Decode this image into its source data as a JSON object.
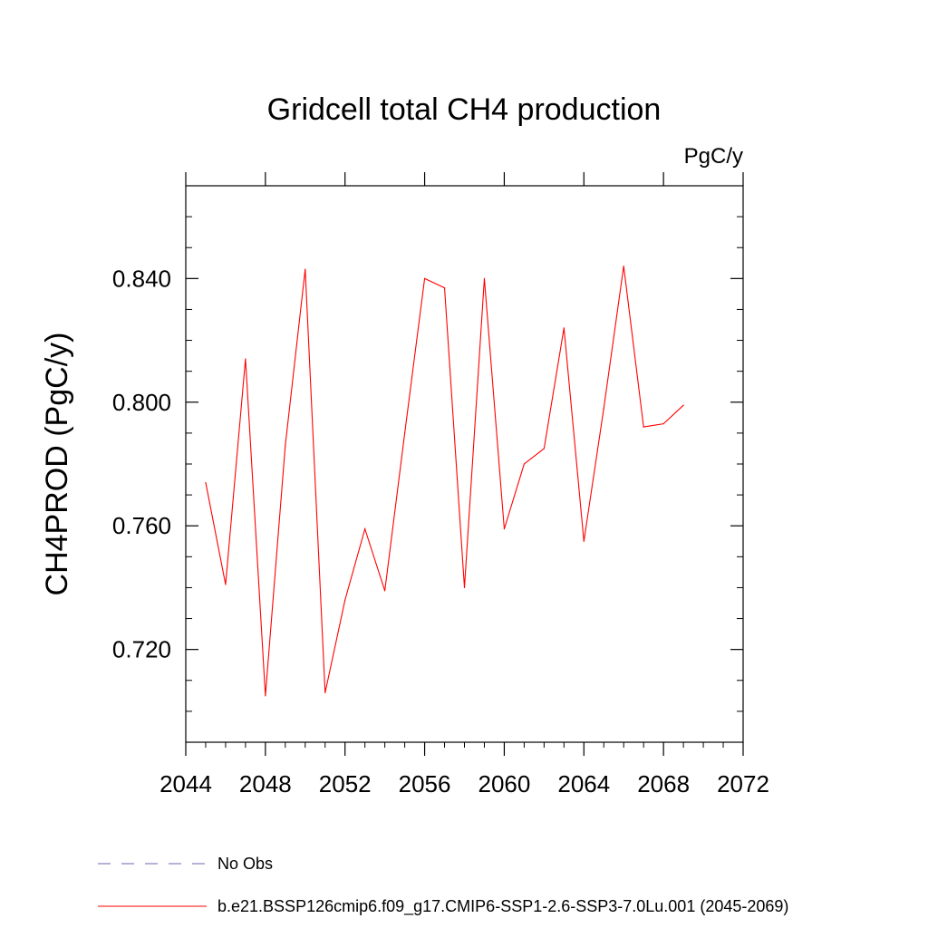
{
  "chart_data": {
    "type": "line",
    "title": "Gridcell total CH4 production",
    "units_label": "PgC/y",
    "xlabel": "",
    "ylabel": "CH4PROD  (PgC/y)",
    "xlim": [
      2044,
      2072
    ],
    "ylim": [
      0.69,
      0.87
    ],
    "x_ticks": [
      2044,
      2048,
      2052,
      2056,
      2060,
      2064,
      2068,
      2072
    ],
    "x_tick_labels": [
      "2044",
      "2048",
      "2052",
      "2056",
      "2060",
      "2064",
      "2068",
      "2072"
    ],
    "y_ticks": [
      0.72,
      0.76,
      0.8,
      0.84
    ],
    "y_tick_labels": [
      "0.720",
      "0.760",
      "0.800",
      "0.840"
    ],
    "grid": false,
    "series": [
      {
        "name": "b.e21.BSSP126cmip6.f09_g17.CMIP6-SSP1-2.6-SSP3-7.0Lu.001 (2045-2069)",
        "color": "#ff0000",
        "x": [
          2045,
          2046,
          2047,
          2048,
          2049,
          2050,
          2051,
          2052,
          2053,
          2054,
          2055,
          2056,
          2057,
          2058,
          2059,
          2060,
          2061,
          2062,
          2063,
          2064,
          2065,
          2066,
          2067,
          2068,
          2069
        ],
        "values": [
          0.774,
          0.741,
          0.814,
          0.705,
          0.786,
          0.843,
          0.706,
          0.736,
          0.759,
          0.739,
          0.79,
          0.84,
          0.837,
          0.74,
          0.84,
          0.759,
          0.78,
          0.785,
          0.824,
          0.755,
          0.798,
          0.844,
          0.792,
          0.793,
          0.799
        ]
      }
    ],
    "legend": {
      "position": "bottom",
      "entries": [
        {
          "label": "No Obs",
          "color": "#6f63b0",
          "style": "dashed"
        },
        {
          "label": "b.e21.BSSP126cmip6.f09_g17.CMIP6-SSP1-2.6-SSP3-7.0Lu.001 (2045-2069)",
          "color": "#ff0000",
          "style": "solid"
        }
      ]
    }
  }
}
